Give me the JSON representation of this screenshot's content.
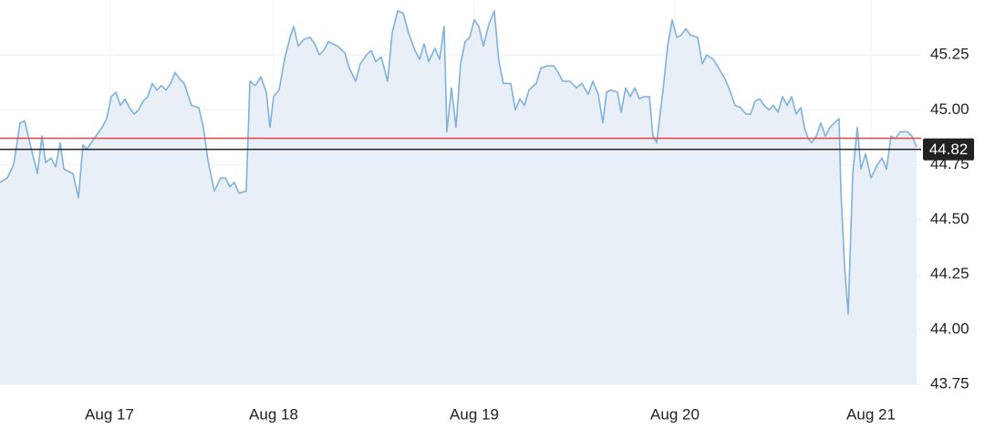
{
  "chart_data": {
    "type": "area",
    "x": [
      0,
      0.8,
      1.5,
      2.2,
      2.7,
      3.5,
      4.1,
      4.6,
      5,
      5.6,
      6.1,
      6.6,
      7,
      8,
      8.6,
      9.1,
      9.5,
      10.5,
      11.2,
      11.7,
      12.2,
      12.7,
      13.2,
      13.7,
      14.2,
      14.7,
      15.2,
      15.7,
      16.2,
      16.7,
      17.2,
      17.7,
      18.2,
      18.7,
      19.2,
      19.7,
      20.2,
      21,
      21.8,
      22.3,
      22.8,
      23.5,
      24.2,
      24.7,
      25.2,
      25.7,
      26.2,
      27,
      27.4,
      28,
      28.6,
      29.2,
      29.6,
      30,
      30.6,
      31.2,
      31.8,
      32.2,
      32.7,
      33.3,
      34,
      34.5,
      35,
      35.5,
      36,
      37,
      37.8,
      38.3,
      39,
      39.5,
      40.2,
      40.7,
      41.2,
      41.8,
      42.5,
      43,
      43.6,
      44.2,
      44.8,
      45.5,
      46,
      46.5,
      47,
      47.7,
      48.2,
      48.7,
      49,
      49.5,
      50,
      50.5,
      51,
      51.5,
      52,
      52.5,
      53,
      53.6,
      54.2,
      54.7,
      55.2,
      56,
      56.5,
      57,
      57.5,
      58,
      58.8,
      59.3,
      60,
      60.7,
      61.2,
      61.7,
      62.5,
      63.2,
      63.8,
      64.5,
      65,
      65.6,
      66.1,
      66.5,
      67,
      67.7,
      68.1,
      68.6,
      69.1,
      69.6,
      70.1,
      70.6,
      71.2,
      71.6,
      72,
      72.7,
      73.2,
      73.7,
      74.2,
      74.7,
      75.2,
      75.7,
      76.5,
      77,
      77.5,
      78.2,
      78.8,
      79.5,
      80,
      80.6,
      81.2,
      81.8,
      82.3,
      82.8,
      83.3,
      83.8,
      84.3,
      84.8,
      85.3,
      85.8,
      86.3,
      86.8,
      87.3,
      87.8,
      88.2,
      88.6,
      89,
      89.5,
      90,
      90.5,
      91,
      91.5,
      92,
      92.2,
      92.6,
      93,
      93.5,
      94,
      94.4,
      94.9,
      95.5,
      96.2,
      96.7,
      97.2,
      97.7,
      98.2,
      98.7,
      99.5,
      100,
      100.5
    ],
    "values": [
      44.67,
      44.69,
      44.75,
      44.94,
      44.95,
      44.81,
      44.71,
      44.88,
      44.76,
      44.78,
      44.74,
      44.85,
      44.73,
      44.71,
      44.6,
      44.84,
      44.82,
      44.88,
      44.92,
      44.96,
      45.06,
      45.08,
      45.02,
      45.05,
      45.01,
      44.98,
      45,
      45.04,
      45.06,
      45.12,
      45.09,
      45.11,
      45.09,
      45.12,
      45.17,
      45.14,
      45.12,
      45.02,
      45.01,
      44.92,
      44.77,
      44.63,
      44.69,
      44.69,
      44.65,
      44.67,
      44.62,
      44.63,
      45.13,
      45.11,
      45.15,
      45.08,
      44.92,
      45.06,
      45.09,
      45.23,
      45.33,
      45.38,
      45.29,
      45.32,
      45.33,
      45.3,
      45.25,
      45.27,
      45.31,
      45.29,
      45.26,
      45.19,
      45.13,
      45.21,
      45.25,
      45.27,
      45.22,
      45.24,
      45.13,
      45.35,
      45.45,
      45.44,
      45.35,
      45.27,
      45.23,
      45.3,
      45.22,
      45.28,
      45.23,
      45.38,
      44.9,
      45.1,
      44.92,
      45.21,
      45.31,
      45.33,
      45.41,
      45.38,
      45.29,
      45.39,
      45.45,
      45.22,
      45.12,
      45.12,
      45,
      45.05,
      45.02,
      45.09,
      45.12,
      45.19,
      45.2,
      45.2,
      45.17,
      45.13,
      45.13,
      45.1,
      45.12,
      45.07,
      45.13,
      45.07,
      44.94,
      45.08,
      45.09,
      45.08,
      44.99,
      45.1,
      45.06,
      45.1,
      45.05,
      45.06,
      45.06,
      44.88,
      44.85,
      45.09,
      45.29,
      45.41,
      45.33,
      45.34,
      45.37,
      45.34,
      45.33,
      45.21,
      45.25,
      45.23,
      45.19,
      45.14,
      45.09,
      45.02,
      45.01,
      44.98,
      44.98,
      45.04,
      45.05,
      45.02,
      45,
      45.02,
      44.99,
      45.06,
      45.02,
      45.06,
      44.98,
      45.01,
      44.92,
      44.87,
      44.85,
      44.88,
      44.94,
      44.88,
      44.92,
      44.94,
      44.96,
      44.63,
      44.29,
      44.07,
      44.71,
      44.92,
      44.73,
      44.8,
      44.69,
      44.75,
      44.78,
      44.73,
      44.88,
      44.87,
      44.9,
      44.9,
      44.88,
      44.83
    ],
    "color": "#7fb1df",
    "fill": "#e8eff6",
    "xlim": [
      0,
      101
    ],
    "xticks": [
      {
        "value": 12,
        "label": "Aug 17"
      },
      {
        "value": 30,
        "label": "Aug 18"
      },
      {
        "value": 52,
        "label": "Aug 19"
      },
      {
        "value": 74,
        "label": "Aug 20"
      },
      {
        "value": 95.5,
        "label": "Aug 21"
      }
    ],
    "ylim": [
      43.75,
      45.5
    ],
    "yticks": [
      43.75,
      {
        "value": 44,
        "label": "44.00"
      },
      44.25,
      {
        "value": 44.5,
        "label": "44.50"
      },
      44.75,
      {
        "value": 45,
        "label": "45.00"
      },
      45.25
    ],
    "grid": true,
    "reference_lines": [
      {
        "value": 44.87,
        "color": "#e0474c"
      },
      {
        "value": 44.82,
        "color": "#222222"
      }
    ]
  }
}
